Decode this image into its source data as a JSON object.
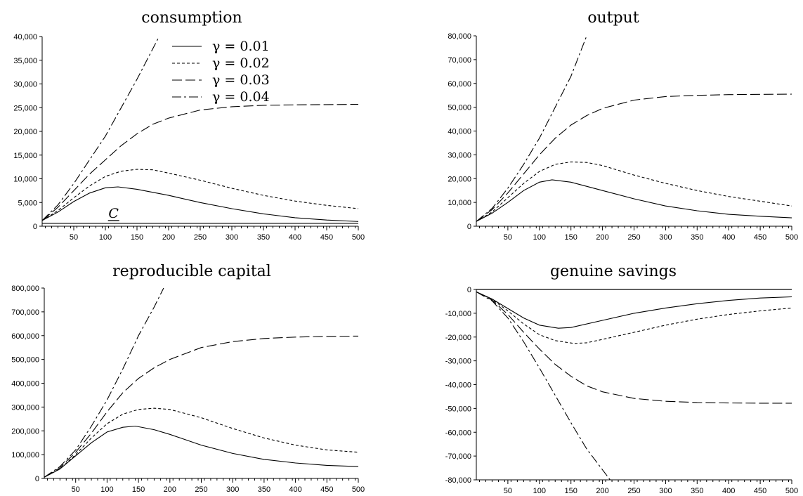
{
  "chart_data": [
    {
      "id": "consumption",
      "type": "line",
      "title": "consumption",
      "xlabel": "",
      "ylabel": "",
      "xlim": [
        0,
        500
      ],
      "ylim": [
        0,
        40000
      ],
      "x_ticks": [
        50,
        100,
        150,
        200,
        250,
        300,
        350,
        400,
        450,
        500
      ],
      "y_ticks": [
        0,
        5000,
        10000,
        15000,
        20000,
        25000,
        30000,
        35000,
        40000
      ],
      "y_tick_labels": [
        "0",
        "5,000",
        "10,000",
        "15,000",
        "20,000",
        "25,000",
        "30,000",
        "35,000",
        "40,000"
      ],
      "legend": {
        "placement": "top-center",
        "entries": [
          "γ = 0.01",
          "γ = 0.02",
          "γ = 0.03",
          "γ = 0.04"
        ]
      },
      "annotation": {
        "text": "C",
        "underlined": true,
        "x": 113,
        "y": 1200
      },
      "hlines": [
        {
          "y": 600,
          "style": "solid"
        }
      ],
      "series": [
        {
          "name": "γ = 0.01",
          "style": "solid",
          "points": [
            [
              0,
              1200
            ],
            [
              25,
              3000
            ],
            [
              50,
              5200
            ],
            [
              75,
              7000
            ],
            [
              100,
              8100
            ],
            [
              120,
              8300
            ],
            [
              150,
              7800
            ],
            [
              200,
              6500
            ],
            [
              250,
              5000
            ],
            [
              300,
              3700
            ],
            [
              350,
              2600
            ],
            [
              400,
              1800
            ],
            [
              450,
              1300
            ],
            [
              500,
              1000
            ]
          ]
        },
        {
          "name": "γ = 0.02",
          "style": "dotted",
          "points": [
            [
              0,
              1200
            ],
            [
              25,
              3300
            ],
            [
              50,
              6000
            ],
            [
              75,
              8500
            ],
            [
              100,
              10500
            ],
            [
              125,
              11600
            ],
            [
              150,
              12000
            ],
            [
              175,
              11900
            ],
            [
              200,
              11200
            ],
            [
              250,
              9700
            ],
            [
              300,
              8000
            ],
            [
              350,
              6500
            ],
            [
              400,
              5300
            ],
            [
              450,
              4400
            ],
            [
              500,
              3700
            ]
          ]
        },
        {
          "name": "γ = 0.03",
          "style": "longdash",
          "points": [
            [
              0,
              1200
            ],
            [
              25,
              4000
            ],
            [
              50,
              7500
            ],
            [
              75,
              11000
            ],
            [
              100,
              14000
            ],
            [
              125,
              17000
            ],
            [
              150,
              19500
            ],
            [
              175,
              21500
            ],
            [
              200,
              22800
            ],
            [
              250,
              24500
            ],
            [
              300,
              25200
            ],
            [
              350,
              25500
            ],
            [
              400,
              25600
            ],
            [
              450,
              25650
            ],
            [
              500,
              25700
            ]
          ]
        },
        {
          "name": "γ = 0.04",
          "style": "dashdot",
          "points": [
            [
              0,
              1200
            ],
            [
              25,
              4500
            ],
            [
              50,
              9000
            ],
            [
              75,
              14000
            ],
            [
              100,
              19000
            ],
            [
              125,
              25000
            ],
            [
              150,
              31000
            ],
            [
              185,
              40000
            ]
          ]
        }
      ]
    },
    {
      "id": "output",
      "type": "line",
      "title": "output",
      "xlabel": "",
      "ylabel": "",
      "xlim": [
        0,
        500
      ],
      "ylim": [
        0,
        80000
      ],
      "x_ticks": [
        50,
        100,
        150,
        200,
        250,
        300,
        350,
        400,
        450,
        500
      ],
      "y_ticks": [
        0,
        10000,
        20000,
        30000,
        40000,
        50000,
        60000,
        70000,
        80000
      ],
      "y_tick_labels": [
        "0",
        "10,000",
        "20,000",
        "30,000",
        "40,000",
        "50,000",
        "60,000",
        "70,000",
        "80,000"
      ],
      "series": [
        {
          "name": "γ = 0.01",
          "style": "solid",
          "points": [
            [
              0,
              2000
            ],
            [
              25,
              5500
            ],
            [
              50,
              10000
            ],
            [
              75,
              15000
            ],
            [
              100,
              18500
            ],
            [
              120,
              19500
            ],
            [
              150,
              18500
            ],
            [
              200,
              15000
            ],
            [
              250,
              11500
            ],
            [
              300,
              8500
            ],
            [
              350,
              6500
            ],
            [
              400,
              5000
            ],
            [
              450,
              4200
            ],
            [
              500,
              3500
            ]
          ]
        },
        {
          "name": "γ = 0.02",
          "style": "dotted",
          "points": [
            [
              0,
              2000
            ],
            [
              25,
              6000
            ],
            [
              50,
              12000
            ],
            [
              75,
              18000
            ],
            [
              100,
              23000
            ],
            [
              125,
              26000
            ],
            [
              150,
              27000
            ],
            [
              175,
              26800
            ],
            [
              200,
              25500
            ],
            [
              250,
              21500
            ],
            [
              300,
              18000
            ],
            [
              350,
              15000
            ],
            [
              400,
              12500
            ],
            [
              450,
              10500
            ],
            [
              500,
              8500
            ]
          ]
        },
        {
          "name": "γ = 0.03",
          "style": "longdash",
          "points": [
            [
              0,
              2000
            ],
            [
              25,
              7000
            ],
            [
              50,
              14000
            ],
            [
              75,
              22000
            ],
            [
              100,
              30000
            ],
            [
              125,
              37000
            ],
            [
              150,
              42500
            ],
            [
              175,
              46500
            ],
            [
              200,
              49500
            ],
            [
              250,
              53000
            ],
            [
              300,
              54500
            ],
            [
              350,
              55000
            ],
            [
              400,
              55300
            ],
            [
              450,
              55400
            ],
            [
              500,
              55500
            ]
          ]
        },
        {
          "name": "γ = 0.04",
          "style": "dashdot",
          "points": [
            [
              0,
              2000
            ],
            [
              25,
              7500
            ],
            [
              50,
              16000
            ],
            [
              75,
              26000
            ],
            [
              100,
              37000
            ],
            [
              125,
              50000
            ],
            [
              150,
              63000
            ],
            [
              175,
              80000
            ]
          ]
        }
      ]
    },
    {
      "id": "reproducible-capital",
      "type": "line",
      "title": "reproducible capital",
      "xlabel": "",
      "ylabel": "",
      "xlim": [
        0,
        500
      ],
      "ylim": [
        0,
        800000
      ],
      "x_ticks": [
        50,
        100,
        150,
        200,
        250,
        300,
        350,
        400,
        450,
        500
      ],
      "y_ticks": [
        0,
        100000,
        200000,
        300000,
        400000,
        500000,
        600000,
        700000,
        800000
      ],
      "y_tick_labels": [
        "0",
        "100,000",
        "200,000",
        "300,000",
        "400,000",
        "500,000",
        "600,000",
        "700,000",
        "800,000"
      ],
      "series": [
        {
          "name": "γ = 0.01",
          "style": "solid",
          "points": [
            [
              0,
              5000
            ],
            [
              25,
              40000
            ],
            [
              50,
              95000
            ],
            [
              75,
              150000
            ],
            [
              100,
              195000
            ],
            [
              125,
              215000
            ],
            [
              145,
              220000
            ],
            [
              175,
              205000
            ],
            [
              200,
              185000
            ],
            [
              250,
              140000
            ],
            [
              300,
              105000
            ],
            [
              350,
              80000
            ],
            [
              400,
              65000
            ],
            [
              450,
              55000
            ],
            [
              500,
              50000
            ]
          ]
        },
        {
          "name": "γ = 0.02",
          "style": "dotted",
          "points": [
            [
              0,
              5000
            ],
            [
              25,
              40000
            ],
            [
              50,
              100000
            ],
            [
              75,
              170000
            ],
            [
              100,
              230000
            ],
            [
              125,
              270000
            ],
            [
              150,
              290000
            ],
            [
              175,
              295000
            ],
            [
              200,
              290000
            ],
            [
              250,
              255000
            ],
            [
              300,
              210000
            ],
            [
              350,
              170000
            ],
            [
              400,
              140000
            ],
            [
              450,
              120000
            ],
            [
              500,
              110000
            ]
          ]
        },
        {
          "name": "γ = 0.03",
          "style": "longdash",
          "points": [
            [
              0,
              5000
            ],
            [
              25,
              45000
            ],
            [
              50,
              110000
            ],
            [
              75,
              190000
            ],
            [
              100,
              280000
            ],
            [
              125,
              360000
            ],
            [
              150,
              420000
            ],
            [
              175,
              465000
            ],
            [
              200,
              500000
            ],
            [
              250,
              550000
            ],
            [
              300,
              575000
            ],
            [
              350,
              588000
            ],
            [
              400,
              594000
            ],
            [
              450,
              597000
            ],
            [
              500,
              598000
            ]
          ]
        },
        {
          "name": "γ = 0.04",
          "style": "dashdot",
          "points": [
            [
              0,
              5000
            ],
            [
              25,
              50000
            ],
            [
              50,
              120000
            ],
            [
              75,
              220000
            ],
            [
              100,
              330000
            ],
            [
              125,
              460000
            ],
            [
              150,
              600000
            ],
            [
              175,
              720000
            ],
            [
              190,
              800000
            ]
          ]
        }
      ]
    },
    {
      "id": "genuine-savings",
      "type": "line",
      "title": "genuine savings",
      "xlabel": "",
      "ylabel": "",
      "xlim": [
        0,
        500
      ],
      "ylim": [
        -80000,
        0
      ],
      "x_ticks": [
        50,
        100,
        150,
        200,
        250,
        300,
        350,
        400,
        450,
        500
      ],
      "y_ticks": [
        0,
        -10000,
        -20000,
        -30000,
        -40000,
        -50000,
        -60000,
        -70000,
        -80000
      ],
      "y_tick_labels": [
        "0",
        "-10,000",
        "-20,000",
        "-30,000",
        "-40,000",
        "-50,000",
        "-60,000",
        "-70,000",
        "-80,000"
      ],
      "hlines": [
        {
          "y": 0,
          "style": "solid"
        }
      ],
      "series": [
        {
          "name": "γ = 0.01",
          "style": "solid",
          "points": [
            [
              0,
              -1000
            ],
            [
              25,
              -4000
            ],
            [
              50,
              -8000
            ],
            [
              75,
              -12000
            ],
            [
              100,
              -15000
            ],
            [
              130,
              -16300
            ],
            [
              150,
              -16000
            ],
            [
              200,
              -13000
            ],
            [
              250,
              -10000
            ],
            [
              300,
              -7800
            ],
            [
              350,
              -6000
            ],
            [
              400,
              -4600
            ],
            [
              450,
              -3600
            ],
            [
              500,
              -3100
            ]
          ]
        },
        {
          "name": "γ = 0.02",
          "style": "dotted",
          "points": [
            [
              0,
              -1000
            ],
            [
              25,
              -4200
            ],
            [
              50,
              -9000
            ],
            [
              75,
              -14500
            ],
            [
              100,
              -19000
            ],
            [
              125,
              -21500
            ],
            [
              155,
              -22700
            ],
            [
              175,
              -22400
            ],
            [
              200,
              -21000
            ],
            [
              250,
              -18000
            ],
            [
              300,
              -15000
            ],
            [
              350,
              -12500
            ],
            [
              400,
              -10500
            ],
            [
              450,
              -9000
            ],
            [
              500,
              -7800
            ]
          ]
        },
        {
          "name": "γ = 0.03",
          "style": "longdash",
          "points": [
            [
              0,
              -1000
            ],
            [
              25,
              -4500
            ],
            [
              50,
              -10500
            ],
            [
              75,
              -18000
            ],
            [
              100,
              -25000
            ],
            [
              125,
              -31500
            ],
            [
              150,
              -36500
            ],
            [
              175,
              -40500
            ],
            [
              200,
              -43000
            ],
            [
              250,
              -45800
            ],
            [
              300,
              -47000
            ],
            [
              350,
              -47500
            ],
            [
              400,
              -47700
            ],
            [
              450,
              -47800
            ],
            [
              500,
              -47800
            ]
          ]
        },
        {
          "name": "γ = 0.04",
          "style": "dashdot",
          "points": [
            [
              0,
              -1000
            ],
            [
              25,
              -4800
            ],
            [
              50,
              -12000
            ],
            [
              75,
              -22000
            ],
            [
              100,
              -33000
            ],
            [
              125,
              -44500
            ],
            [
              150,
              -56000
            ],
            [
              175,
              -67000
            ],
            [
              212,
              -80000
            ]
          ]
        }
      ]
    }
  ]
}
